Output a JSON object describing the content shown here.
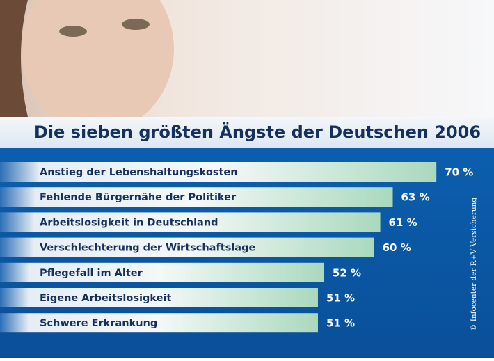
{
  "chart_data": {
    "type": "hbar",
    "title": "Die sieben größten Ängste der Deutschen 2006",
    "categories": [
      "Anstieg der Lebenshaltungskosten",
      "Fehlende Bürgernähe der Politiker",
      "Arbeitslosigkeit in Deutschland",
      "Verschlechterung der Wirtschaftslage",
      "Pflegefall im Alter",
      "Eigene Arbeitslosigkeit",
      "Schwere Erkrankung"
    ],
    "values": [
      70,
      63,
      61,
      60,
      52,
      51,
      51
    ],
    "value_labels": [
      "70 %",
      "63 %",
      "61 %",
      "60 %",
      "52 %",
      "51 %",
      "51 %"
    ],
    "color": "#a9d9bd",
    "source": "© Infocenter der R+V Versicherung"
  }
}
